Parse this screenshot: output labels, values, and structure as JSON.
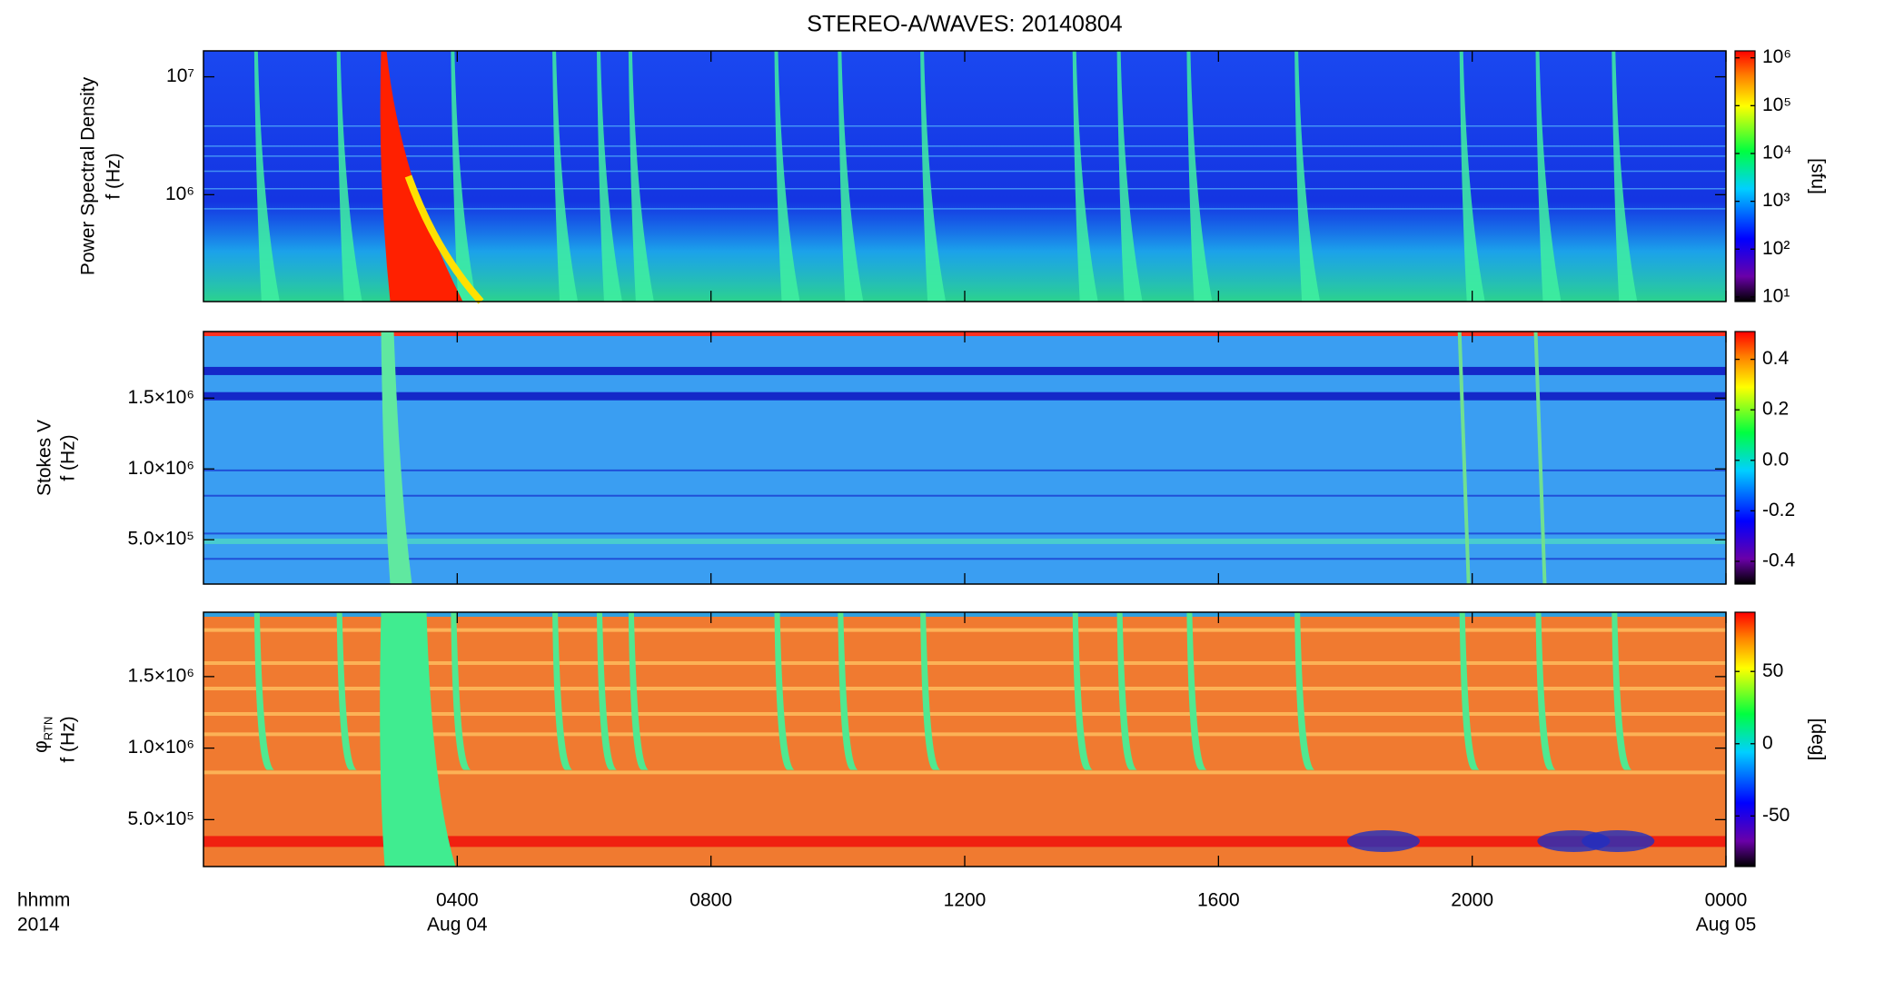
{
  "chart_data": [
    {
      "type": "heatmap",
      "title": "STEREO-A/WAVES: 20140804",
      "ylabel": [
        "Power Spectral Density",
        "f (Hz)"
      ],
      "ylog": true,
      "ylim": [
        124000,
        16600000
      ],
      "yticks": [
        {
          "value": 1000000,
          "label": "10⁶"
        },
        {
          "value": 10000000,
          "label": "10⁷"
        }
      ],
      "colorbar": {
        "label": "[sfu]",
        "log": true,
        "lim": [
          8,
          1400000
        ],
        "ticks": [
          {
            "value": 10,
            "label": "10¹"
          },
          {
            "value": 100,
            "label": "10²"
          },
          {
            "value": 1000,
            "label": "10³"
          },
          {
            "value": 10000,
            "label": "10⁴"
          },
          {
            "value": 100000,
            "label": "10⁵"
          },
          {
            "value": 1000000,
            "label": "10⁶"
          }
        ]
      }
    },
    {
      "type": "heatmap",
      "ylabel": [
        "Stokes V",
        "f (Hz)"
      ],
      "ylog": false,
      "ylim": [
        187000,
        1970000
      ],
      "yticks": [
        {
          "value": 500000,
          "label": "5.0×10⁵"
        },
        {
          "value": 1000000,
          "label": "1.0×10⁶"
        },
        {
          "value": 1500000,
          "label": "1.5×10⁶"
        }
      ],
      "colorbar": {
        "log": false,
        "lim": [
          -0.49,
          0.51
        ],
        "ticks": [
          -0.4,
          -0.2,
          {
            "value": 0,
            "label": "0.0"
          },
          0.2,
          0.4
        ]
      }
    },
    {
      "type": "heatmap",
      "ylabel": [
        "φ",
        "f (Hz)"
      ],
      "ylabel_subscript": "RTN",
      "ylog": false,
      "ylim": [
        172000,
        1950000
      ],
      "yticks": [
        {
          "value": 500000,
          "label": "5.0×10⁵"
        },
        {
          "value": 1000000,
          "label": "1.0×10⁶"
        },
        {
          "value": 1500000,
          "label": "1.5×10⁶"
        }
      ],
      "colorbar": {
        "label": "[deg]",
        "log": false,
        "lim": [
          -85,
          91
        ],
        "ticks": [
          -50,
          0,
          50
        ]
      },
      "xlabel": [
        "hhmm",
        "2014"
      ],
      "xlim": [
        0,
        24
      ],
      "xticks": [
        {
          "value": 4,
          "label": "0400"
        },
        {
          "value": 8,
          "label": "0800"
        },
        {
          "value": 12,
          "label": "1200"
        },
        {
          "value": 16,
          "label": "1600"
        },
        {
          "value": 20,
          "label": "2000"
        },
        {
          "value": 24,
          "label": "0000"
        }
      ],
      "xdates": [
        {
          "value": 4,
          "label": "Aug 04"
        },
        {
          "value": 24,
          "label": "Aug 05"
        }
      ]
    }
  ]
}
